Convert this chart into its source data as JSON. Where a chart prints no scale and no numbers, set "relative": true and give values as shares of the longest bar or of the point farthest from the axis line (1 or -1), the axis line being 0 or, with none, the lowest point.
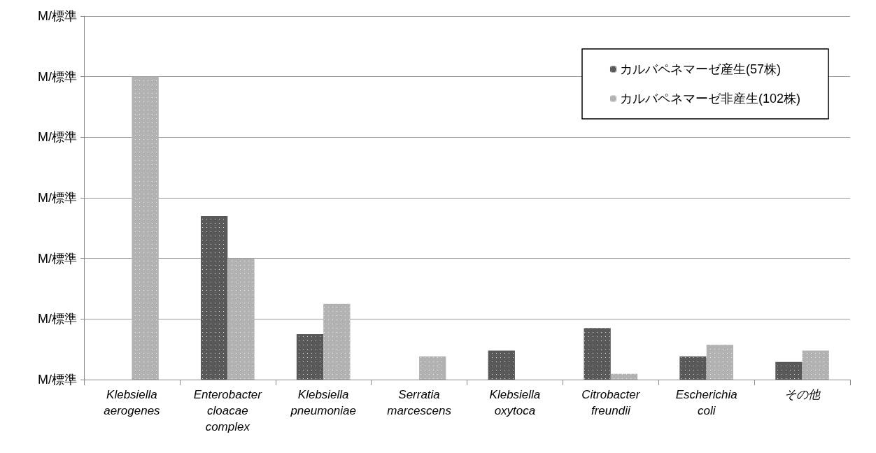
{
  "chart_data": {
    "type": "bar",
    "relative": true,
    "categories": [
      "Klebsiella\naerogenes",
      "Enterobacter\ncloacae\ncomplex",
      "Klebsiella\npneumoniae",
      "Serratia\nmarcescens",
      "Klebsiella\noxytoca",
      "Citrobacter\nfreundii",
      "Escherichia\ncoli",
      "その他"
    ],
    "series": [
      {
        "name": "カルバペネマーゼ産生(57株)",
        "color": "#595959",
        "values": [
          0,
          0.54,
          0.15,
          0,
          0.096,
          0.17,
          0.077,
          0.058
        ]
      },
      {
        "name": "カルバペネマーゼ非産生(102株)",
        "color": "#b2b2b2",
        "values": [
          1,
          0.4,
          0.25,
          0.077,
          0,
          0.019,
          0.115,
          0.096
        ]
      }
    ],
    "annotations": [
      "M/標準",
      "M/標準",
      "M/標準",
      "M/標準",
      "M/標準",
      "M/標準",
      "M/標準"
    ],
    "grid": "y",
    "legend": "top right"
  }
}
